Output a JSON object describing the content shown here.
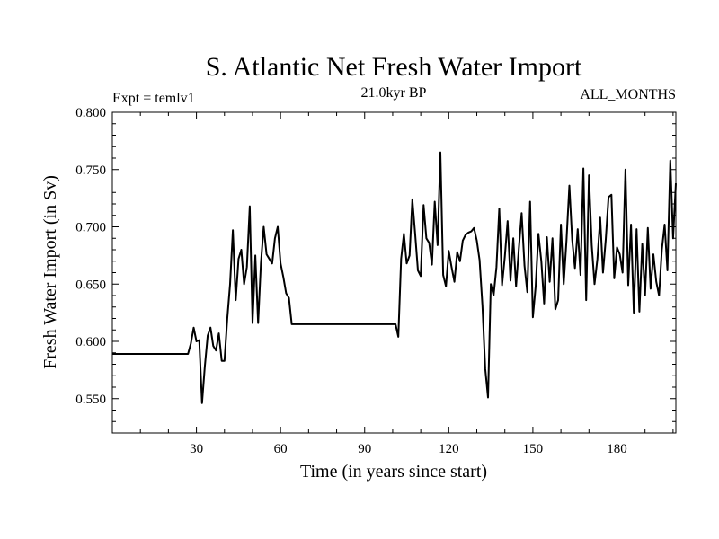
{
  "chart_data": {
    "type": "line",
    "title": "S. Atlantic Net Fresh Water Import",
    "left_label": "Expt = temlv1",
    "subtitle": "21.0kyr BP",
    "right_label": "ALL_MONTHS",
    "xlabel": "Time (in years since start)",
    "ylabel": "Fresh Water Import (in Sv)",
    "xlim": [
      0,
      201
    ],
    "ylim": [
      0.52,
      0.8
    ],
    "xticks": [
      30,
      60,
      90,
      120,
      150,
      180
    ],
    "xtick_labels": [
      "30",
      "60",
      "90",
      "120",
      "150",
      "180"
    ],
    "yticks": [
      0.55,
      0.6,
      0.65,
      0.7,
      0.75,
      0.8
    ],
    "ytick_labels": [
      "0.550",
      "0.600",
      "0.650",
      "0.700",
      "0.750",
      "0.800"
    ],
    "line_color": "#000000",
    "series": [
      {
        "name": "Net Fresh Water Import",
        "x": [
          0,
          27,
          28,
          29,
          30,
          31,
          32,
          33,
          34,
          35,
          36,
          37,
          38,
          39,
          40,
          41,
          42,
          43,
          44,
          45,
          46,
          47,
          48,
          49,
          50,
          51,
          52,
          53,
          54,
          55,
          56,
          57,
          58,
          59,
          60,
          61,
          62,
          63,
          64,
          101,
          102,
          103,
          104,
          105,
          106,
          107,
          108,
          109,
          110,
          111,
          112,
          113,
          114,
          115,
          116,
          117,
          118,
          119,
          120,
          121,
          122,
          123,
          124,
          125,
          126,
          127,
          128,
          129,
          130,
          131,
          132,
          133,
          134,
          135,
          136,
          137,
          138,
          139,
          140,
          141,
          142,
          143,
          144,
          145,
          146,
          147,
          148,
          149,
          150,
          151,
          152,
          153,
          154,
          155,
          156,
          157,
          158,
          159,
          160,
          161,
          162,
          163,
          164,
          165,
          166,
          167,
          168,
          169,
          170,
          171,
          172,
          173,
          174,
          175,
          176,
          177,
          178,
          179,
          180,
          181,
          182,
          183,
          184,
          185,
          186,
          187,
          188,
          189,
          190,
          191,
          192,
          193,
          194,
          195,
          196,
          197,
          198,
          199,
          200,
          201
        ],
        "values": [
          0.589,
          0.589,
          0.598,
          0.612,
          0.6,
          0.601,
          0.546,
          0.578,
          0.605,
          0.612,
          0.596,
          0.592,
          0.607,
          0.583,
          0.583,
          0.62,
          0.65,
          0.697,
          0.636,
          0.672,
          0.68,
          0.65,
          0.665,
          0.718,
          0.616,
          0.675,
          0.616,
          0.668,
          0.7,
          0.676,
          0.672,
          0.668,
          0.69,
          0.7,
          0.668,
          0.656,
          0.642,
          0.638,
          0.615,
          0.615,
          0.604,
          0.672,
          0.694,
          0.668,
          0.675,
          0.724,
          0.694,
          0.662,
          0.657,
          0.719,
          0.69,
          0.686,
          0.667,
          0.722,
          0.684,
          0.765,
          0.658,
          0.648,
          0.679,
          0.665,
          0.652,
          0.678,
          0.67,
          0.688,
          0.693,
          0.695,
          0.696,
          0.699,
          0.688,
          0.671,
          0.631,
          0.576,
          0.551,
          0.65,
          0.64,
          0.665,
          0.716,
          0.649,
          0.674,
          0.705,
          0.653,
          0.69,
          0.648,
          0.681,
          0.712,
          0.666,
          0.643,
          0.722,
          0.621,
          0.648,
          0.694,
          0.67,
          0.633,
          0.691,
          0.652,
          0.69,
          0.628,
          0.636,
          0.702,
          0.65,
          0.688,
          0.736,
          0.689,
          0.664,
          0.698,
          0.658,
          0.751,
          0.636,
          0.745,
          0.684,
          0.65,
          0.672,
          0.708,
          0.66,
          0.689,
          0.726,
          0.728,
          0.655,
          0.682,
          0.676,
          0.66,
          0.75,
          0.649,
          0.702,
          0.625,
          0.698,
          0.626,
          0.685,
          0.64,
          0.699,
          0.646,
          0.676,
          0.652,
          0.64,
          0.68,
          0.702,
          0.662,
          0.758,
          0.69,
          0.738
        ]
      }
    ]
  }
}
